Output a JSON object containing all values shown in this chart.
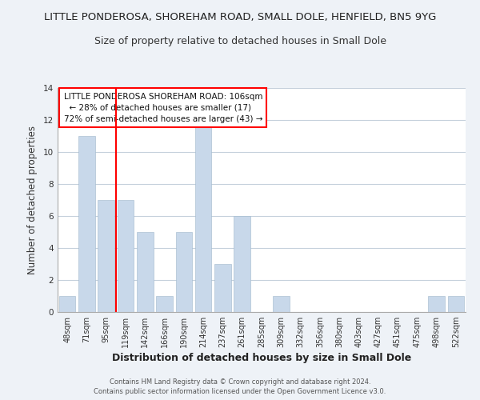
{
  "title": "LITTLE PONDEROSA, SHOREHAM ROAD, SMALL DOLE, HENFIELD, BN5 9YG",
  "subtitle": "Size of property relative to detached houses in Small Dole",
  "xlabel": "Distribution of detached houses by size in Small Dole",
  "ylabel": "Number of detached properties",
  "bar_labels": [
    "48sqm",
    "71sqm",
    "95sqm",
    "119sqm",
    "142sqm",
    "166sqm",
    "190sqm",
    "214sqm",
    "237sqm",
    "261sqm",
    "285sqm",
    "309sqm",
    "332sqm",
    "356sqm",
    "380sqm",
    "403sqm",
    "427sqm",
    "451sqm",
    "475sqm",
    "498sqm",
    "522sqm"
  ],
  "bar_values": [
    1,
    11,
    7,
    7,
    5,
    1,
    5,
    12,
    3,
    6,
    0,
    1,
    0,
    0,
    0,
    0,
    0,
    0,
    0,
    1,
    1
  ],
  "bar_color": "#c8d8ea",
  "red_line_x": 2.5,
  "ylim": [
    0,
    14
  ],
  "yticks": [
    0,
    2,
    4,
    6,
    8,
    10,
    12,
    14
  ],
  "annotation_title": "LITTLE PONDEROSA SHOREHAM ROAD: 106sqm",
  "annotation_line1": "  ← 28% of detached houses are smaller (17)",
  "annotation_line2": "72% of semi-detached houses are larger (43) →",
  "footnote1": "Contains HM Land Registry data © Crown copyright and database right 2024.",
  "footnote2": "Contains public sector information licensed under the Open Government Licence v3.0.",
  "background_color": "#eef2f7",
  "plot_background": "#ffffff",
  "grid_color": "#c5d0dc",
  "title_fontsize": 9.5,
  "subtitle_fontsize": 9.0,
  "xlabel_fontsize": 9.0,
  "ylabel_fontsize": 8.5
}
